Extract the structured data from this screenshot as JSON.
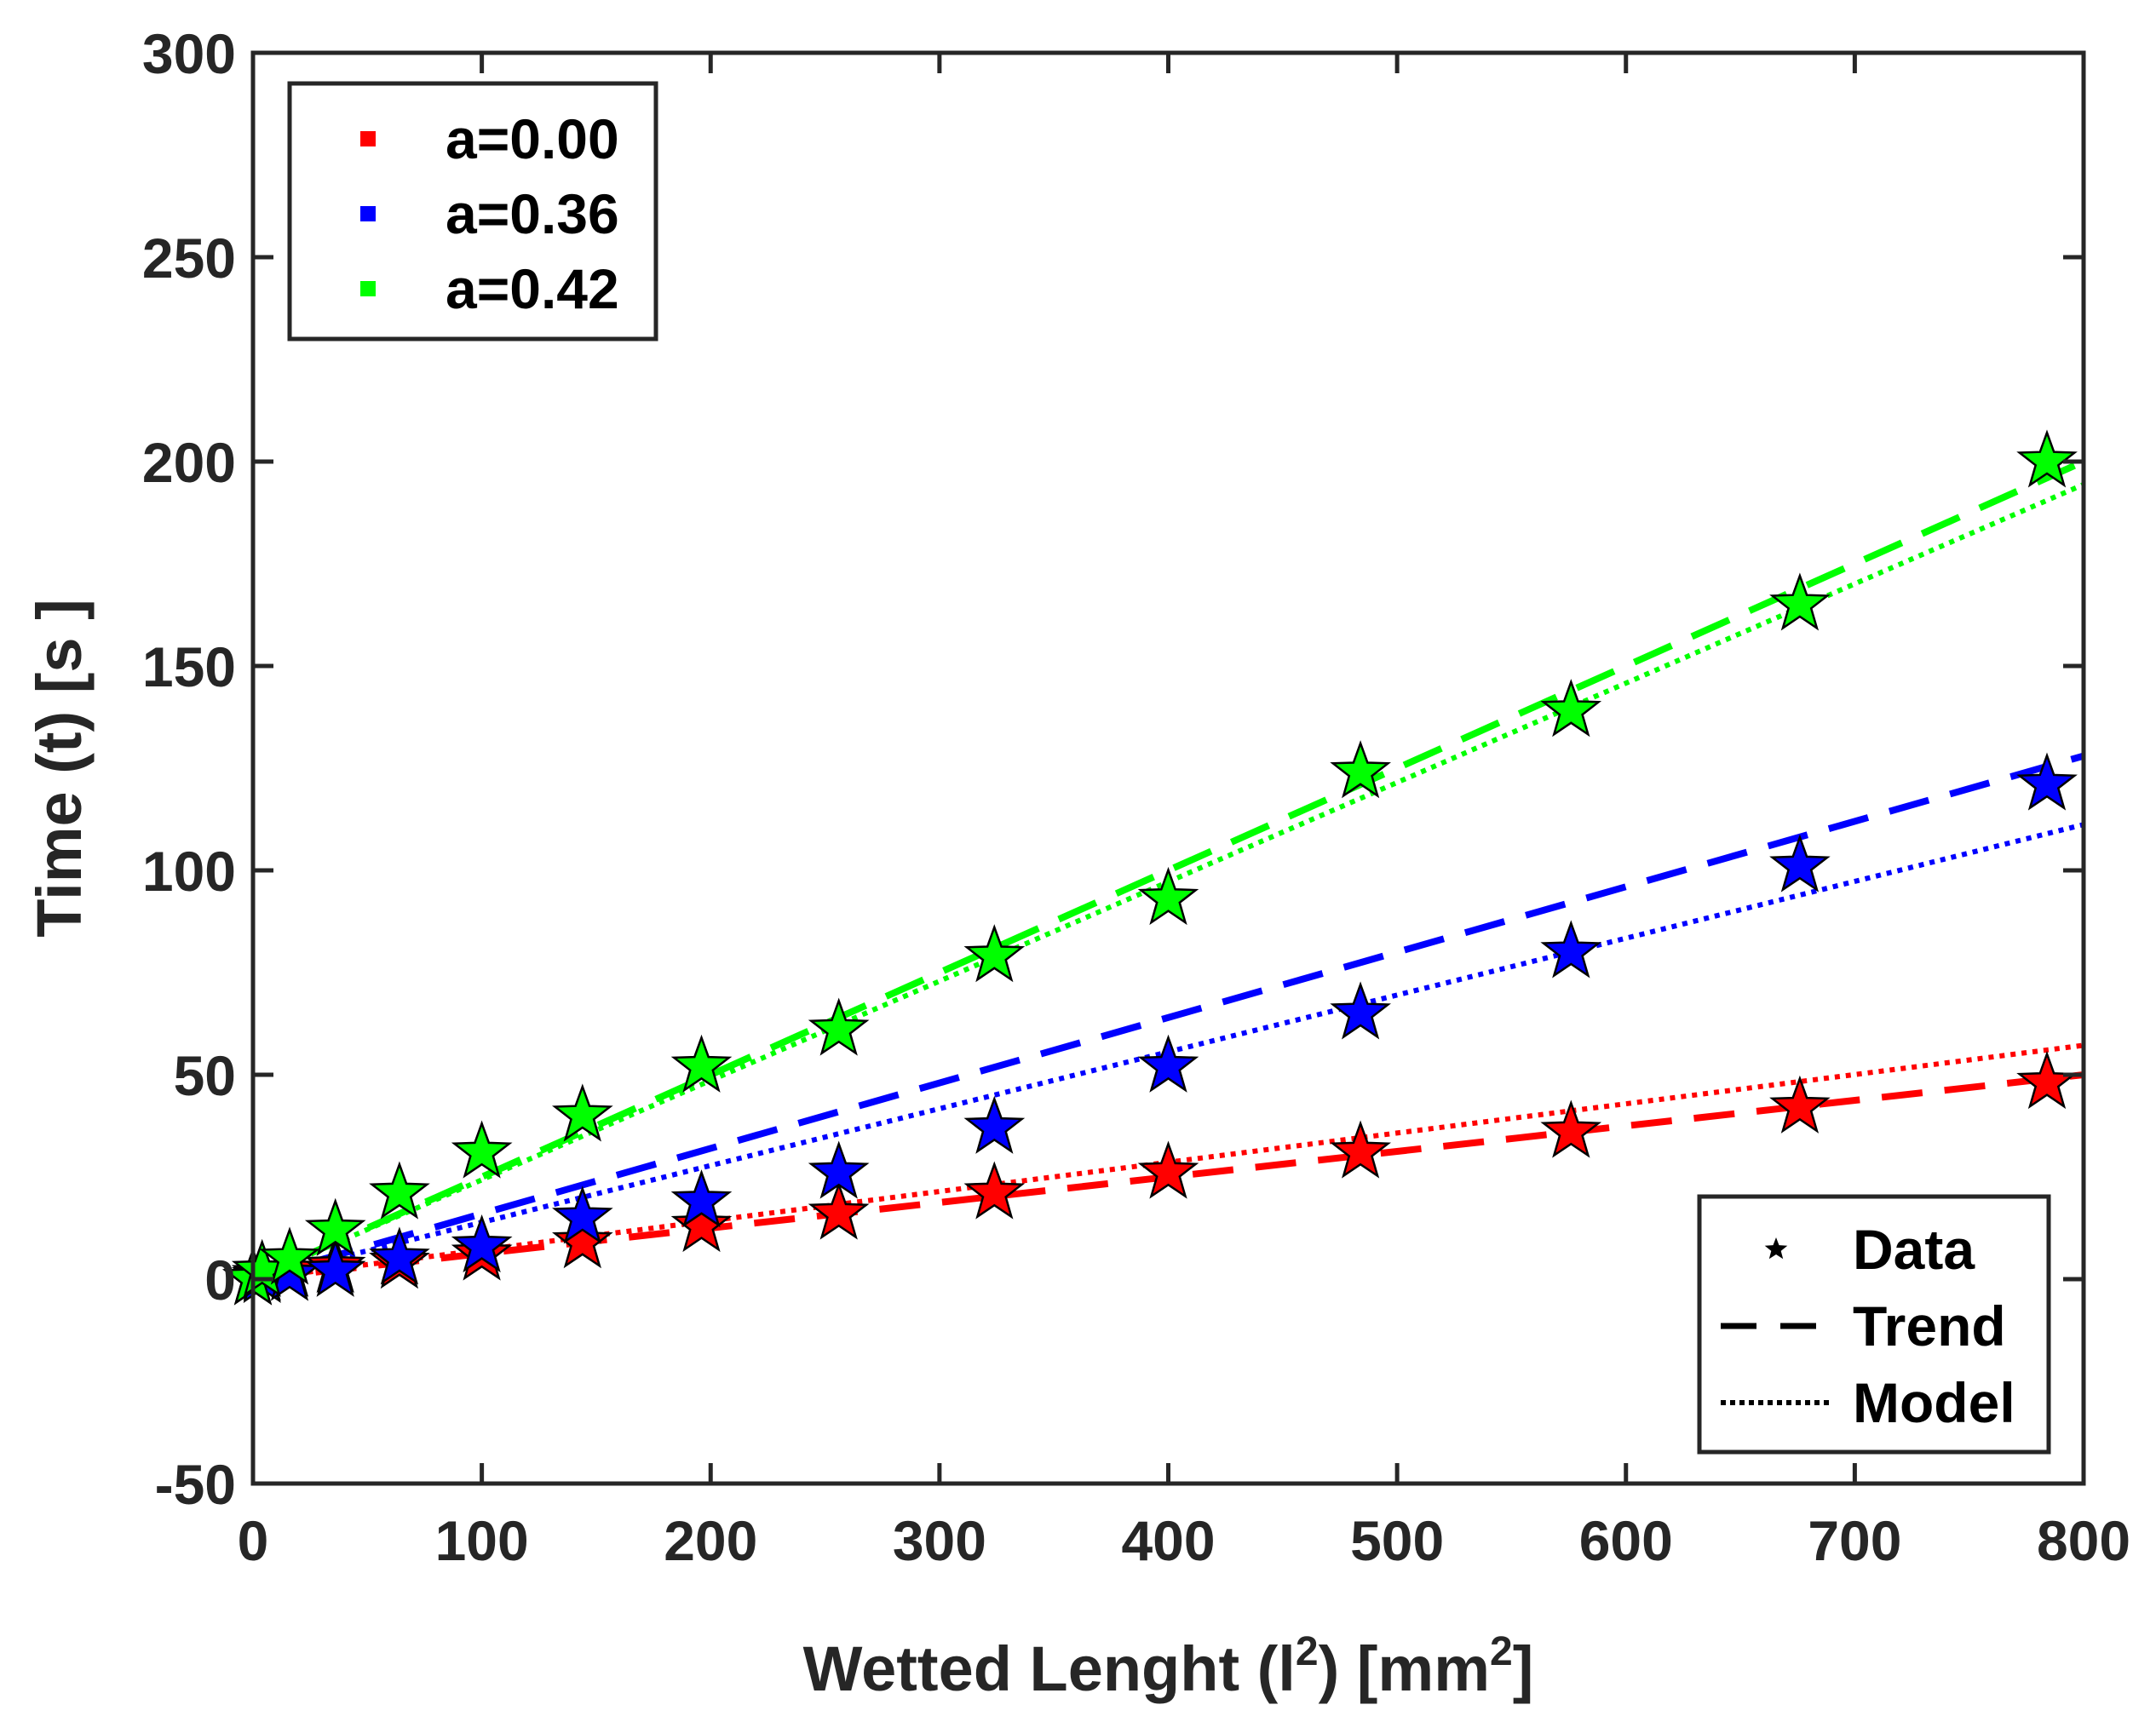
{
  "chart_data": {
    "type": "scatter",
    "xlabel": "Wetted Lenght (l²) [mm²]",
    "xlabel_parts": {
      "pre": "Wetted Lenght (l",
      "sup1": "2",
      "mid": ") [mm",
      "sup2": "2",
      "post": "]"
    },
    "ylabel": "Time (t) [s ]",
    "xlim": [
      0,
      800
    ],
    "ylim": [
      -50,
      300
    ],
    "xticks": [
      0,
      100,
      200,
      300,
      400,
      500,
      600,
      700,
      800
    ],
    "yticks": [
      -50,
      0,
      50,
      100,
      150,
      200,
      250,
      300
    ],
    "grid": false,
    "series": [
      {
        "name": "a=0.00",
        "color": "#ff0000",
        "x": [
          0,
          4,
          16,
          36,
          64,
          100,
          144,
          196,
          256,
          324,
          400,
          484,
          576,
          676,
          784
        ],
        "y": [
          0,
          1,
          2,
          3,
          4,
          6,
          9,
          13,
          16,
          21,
          26,
          31,
          36,
          42,
          48
        ],
        "trend_slope": 0.0625,
        "model_slope": 0.0715
      },
      {
        "name": "a=0.36",
        "color": "#0000ff",
        "x": [
          0,
          4,
          16,
          36,
          64,
          100,
          144,
          196,
          256,
          324,
          400,
          484,
          576,
          676,
          784
        ],
        "y": [
          0,
          0.5,
          1,
          2,
          5,
          8,
          15,
          19,
          26,
          37,
          52,
          65,
          80,
          101,
          121
        ],
        "trend_slope": 0.16,
        "model_slope": 0.139
      },
      {
        "name": "a=0.42",
        "color": "#00ff00",
        "x": [
          0,
          4,
          16,
          36,
          64,
          100,
          144,
          196,
          256,
          324,
          400,
          484,
          576,
          676,
          784
        ],
        "y": [
          0,
          2,
          5,
          12,
          21,
          31,
          40,
          52,
          61,
          79,
          93,
          124,
          139,
          165,
          200
        ],
        "trend_slope": 0.25,
        "model_slope": 0.243
      }
    ],
    "legend_series_position": "top-left",
    "legend_style": {
      "position": "bottom-right",
      "entries": [
        {
          "label": "Data",
          "style": "star"
        },
        {
          "label": "Trend",
          "style": "dashed"
        },
        {
          "label": "Model",
          "style": "dotted"
        }
      ]
    }
  }
}
